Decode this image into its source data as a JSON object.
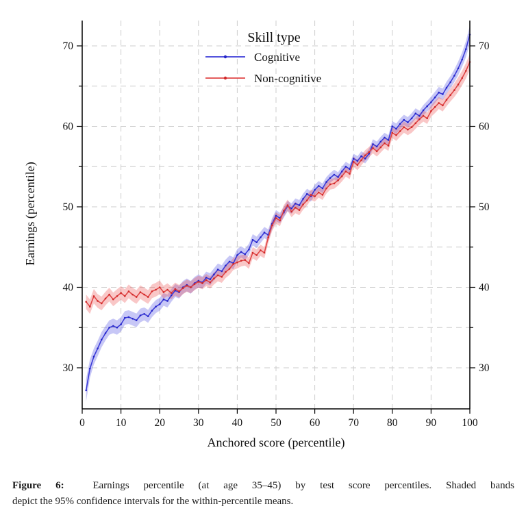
{
  "figure": {
    "caption_label": "Figure 6:",
    "caption_line1": "Earnings percentile (at age 35–45) by test score percentiles. Shaded bands",
    "caption_line2": "depict the 95% confidence intervals for the within-percentile means."
  },
  "chart_data": {
    "type": "line",
    "title": "",
    "xlabel": "Anchored score (percentile)",
    "ylabel": "Earnings (percentile)",
    "xlim": [
      0,
      100
    ],
    "ylim": [
      25,
      73
    ],
    "grid": "on",
    "grid_color": "#cccccc",
    "grid_style": "dashed",
    "axis_color": "#000000",
    "xticks": [
      0,
      10,
      20,
      30,
      40,
      50,
      60,
      70,
      80,
      90,
      100
    ],
    "yticks_major": [
      30,
      40,
      50,
      60,
      70
    ],
    "yticks_minor": [
      35,
      45,
      55,
      65
    ],
    "grid_x_values": [
      10,
      20,
      30,
      40,
      50,
      60,
      70,
      80,
      90
    ],
    "grid_y_values": [
      30,
      35,
      40,
      45,
      50,
      55,
      60,
      65,
      70
    ],
    "legend": {
      "title": "Skill type",
      "position": "top-center",
      "entries": [
        "Cognitive",
        "Non-cognitive"
      ]
    },
    "x": [
      1,
      2,
      3,
      4,
      5,
      6,
      7,
      8,
      9,
      10,
      11,
      12,
      13,
      14,
      15,
      16,
      17,
      18,
      19,
      20,
      21,
      22,
      23,
      24,
      25,
      26,
      27,
      28,
      29,
      30,
      31,
      32,
      33,
      34,
      35,
      36,
      37,
      38,
      39,
      40,
      41,
      42,
      43,
      44,
      45,
      46,
      47,
      48,
      49,
      50,
      51,
      52,
      53,
      54,
      55,
      56,
      57,
      58,
      59,
      60,
      61,
      62,
      63,
      64,
      65,
      66,
      67,
      68,
      69,
      70,
      71,
      72,
      73,
      74,
      75,
      76,
      77,
      78,
      79,
      80,
      81,
      82,
      83,
      84,
      85,
      86,
      87,
      88,
      89,
      90,
      91,
      92,
      93,
      94,
      95,
      96,
      97,
      98,
      99,
      100
    ],
    "series": [
      {
        "name": "Cognitive",
        "color": "#3b3bd8",
        "marker_color": "#2525c8",
        "band_color": "rgba(70,70,225,0.30)",
        "values": [
          27.2,
          29.9,
          31.4,
          32.4,
          33.5,
          34.3,
          35.0,
          35.2,
          35.0,
          35.4,
          36.2,
          36.3,
          36.1,
          35.9,
          36.5,
          36.7,
          36.4,
          37.1,
          37.6,
          37.9,
          38.5,
          38.3,
          39.0,
          39.6,
          39.4,
          40.0,
          40.3,
          40.0,
          40.5,
          40.8,
          40.6,
          41.2,
          41.0,
          41.6,
          42.2,
          42.0,
          42.7,
          43.2,
          43.0,
          44.0,
          44.4,
          44.1,
          44.7,
          45.9,
          45.6,
          46.2,
          46.8,
          46.5,
          47.9,
          48.9,
          48.6,
          49.3,
          50.1,
          49.8,
          50.4,
          50.2,
          51.0,
          51.6,
          51.3,
          52.1,
          52.6,
          52.3,
          53.1,
          53.6,
          54.0,
          53.7,
          54.4,
          55.0,
          54.7,
          56.0,
          55.7,
          56.3,
          56.0,
          56.6,
          57.8,
          57.5,
          58.1,
          58.6,
          58.3,
          60.0,
          59.7,
          60.3,
          60.8,
          60.5,
          61.0,
          61.6,
          61.3,
          62.0,
          62.5,
          63.0,
          63.6,
          64.2,
          64.0,
          64.8,
          65.5,
          66.3,
          67.2,
          68.3,
          69.6,
          71.4
        ],
        "ci": [
          1.4,
          1.15,
          1.0,
          0.95,
          0.95,
          0.9,
          0.9,
          0.9,
          0.9,
          0.9,
          0.85,
          0.85,
          0.85,
          0.85,
          0.85,
          0.8,
          0.8,
          0.8,
          0.8,
          0.8,
          0.8,
          0.8,
          0.8,
          0.8,
          0.8,
          0.8,
          0.8,
          0.8,
          0.8,
          0.8,
          0.75,
          0.75,
          0.75,
          0.75,
          0.75,
          0.75,
          0.75,
          0.75,
          0.75,
          0.75,
          0.7,
          0.7,
          0.7,
          0.7,
          0.7,
          0.7,
          0.7,
          0.7,
          0.7,
          0.7,
          0.65,
          0.65,
          0.65,
          0.65,
          0.65,
          0.65,
          0.65,
          0.65,
          0.65,
          0.65,
          0.6,
          0.6,
          0.6,
          0.6,
          0.6,
          0.6,
          0.6,
          0.6,
          0.6,
          0.6,
          0.6,
          0.6,
          0.6,
          0.6,
          0.6,
          0.6,
          0.6,
          0.6,
          0.6,
          0.65,
          0.65,
          0.65,
          0.65,
          0.65,
          0.65,
          0.65,
          0.65,
          0.65,
          0.65,
          0.7,
          0.7,
          0.7,
          0.7,
          0.75,
          0.75,
          0.8,
          0.85,
          0.9,
          1.0,
          1.1
        ]
      },
      {
        "name": "Non-cognitive",
        "color": "#e04545",
        "marker_color": "#d02828",
        "band_color": "rgba(235,70,70,0.30)",
        "values": [
          38.2,
          37.6,
          38.9,
          38.3,
          38.0,
          38.6,
          39.1,
          38.5,
          38.9,
          39.3,
          38.9,
          39.5,
          39.1,
          38.8,
          39.4,
          39.1,
          38.8,
          39.5,
          39.7,
          40.0,
          39.4,
          39.7,
          39.3,
          39.8,
          39.5,
          39.9,
          40.2,
          40.0,
          40.4,
          40.7,
          40.5,
          40.9,
          40.6,
          41.1,
          41.5,
          41.3,
          41.9,
          42.3,
          42.9,
          43.1,
          43.3,
          43.4,
          43.0,
          44.3,
          44.0,
          44.6,
          44.3,
          46.2,
          47.7,
          48.6,
          48.3,
          49.5,
          50.2,
          49.4,
          49.9,
          49.6,
          50.3,
          50.8,
          51.5,
          51.3,
          51.8,
          51.5,
          52.3,
          52.8,
          52.9,
          53.3,
          53.8,
          54.4,
          54.1,
          55.6,
          55.2,
          55.8,
          56.4,
          56.8,
          57.3,
          56.9,
          57.4,
          57.9,
          57.6,
          59.2,
          58.9,
          59.4,
          59.9,
          59.6,
          59.9,
          60.4,
          60.9,
          61.3,
          61.0,
          61.9,
          62.4,
          62.9,
          62.6,
          63.3,
          63.9,
          64.5,
          65.2,
          66.0,
          66.9,
          68.0
        ],
        "ci": [
          0.9,
          0.9,
          0.9,
          0.85,
          0.85,
          0.85,
          0.85,
          0.85,
          0.85,
          0.85,
          0.85,
          0.85,
          0.85,
          0.85,
          0.85,
          0.85,
          0.85,
          0.85,
          0.85,
          0.85,
          0.8,
          0.8,
          0.8,
          0.8,
          0.8,
          0.75,
          0.75,
          0.75,
          0.75,
          0.75,
          0.75,
          0.75,
          0.75,
          0.75,
          0.75,
          0.75,
          0.75,
          0.75,
          0.75,
          0.75,
          0.7,
          0.7,
          0.7,
          0.7,
          0.7,
          0.7,
          0.7,
          0.7,
          0.7,
          0.7,
          0.7,
          0.7,
          0.7,
          0.7,
          0.7,
          0.65,
          0.65,
          0.65,
          0.65,
          0.65,
          0.65,
          0.65,
          0.65,
          0.65,
          0.65,
          0.65,
          0.65,
          0.65,
          0.65,
          0.65,
          0.65,
          0.65,
          0.65,
          0.65,
          0.65,
          0.65,
          0.65,
          0.65,
          0.65,
          0.65,
          0.7,
          0.7,
          0.7,
          0.7,
          0.7,
          0.7,
          0.7,
          0.7,
          0.7,
          0.7,
          0.75,
          0.75,
          0.75,
          0.8,
          0.8,
          0.85,
          0.9,
          0.9,
          0.95,
          1.0
        ]
      }
    ]
  }
}
